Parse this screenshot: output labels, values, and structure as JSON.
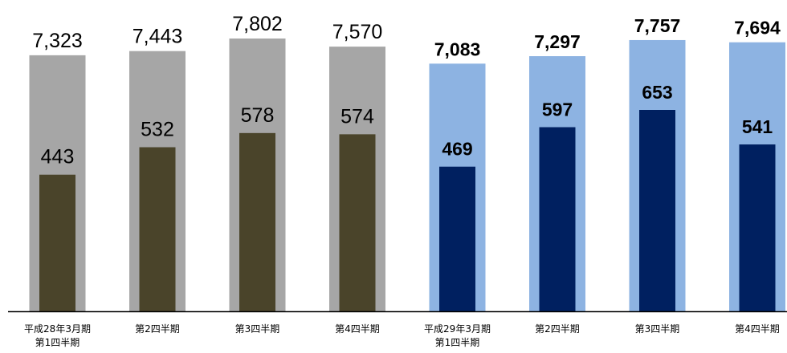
{
  "chart_data": {
    "type": "bar",
    "categories": [
      [
        "平成28年3月期",
        "第1四半期"
      ],
      [
        "第2四半期"
      ],
      [
        "第3四半期"
      ],
      [
        "第4四半期"
      ],
      [
        "平成29年3月期",
        "第1四半期"
      ],
      [
        "第2四半期"
      ],
      [
        "第3四半期"
      ],
      [
        "第4四半期"
      ]
    ],
    "series": [
      {
        "values": [
          7323,
          7443,
          7802,
          7570,
          7083,
          7297,
          7757,
          7694
        ]
      },
      {
        "values": [
          443,
          532,
          578,
          574,
          469,
          597,
          653,
          541
        ]
      }
    ],
    "value_labels_outer": [
      "7,323",
      "7,443",
      "7,802",
      "7,570",
      "7,083",
      "7,297",
      "7,757",
      "7,694"
    ],
    "value_labels_inner": [
      "443",
      "532",
      "578",
      "574",
      "469",
      "597",
      "653",
      "541"
    ],
    "colors": {
      "outer_previous": "#a6a6a6",
      "inner_previous": "#4a442a",
      "outer_current": "#8db3e2",
      "inner_current": "#002060",
      "axis": "#000000"
    },
    "highlight_from_index": 4
  }
}
